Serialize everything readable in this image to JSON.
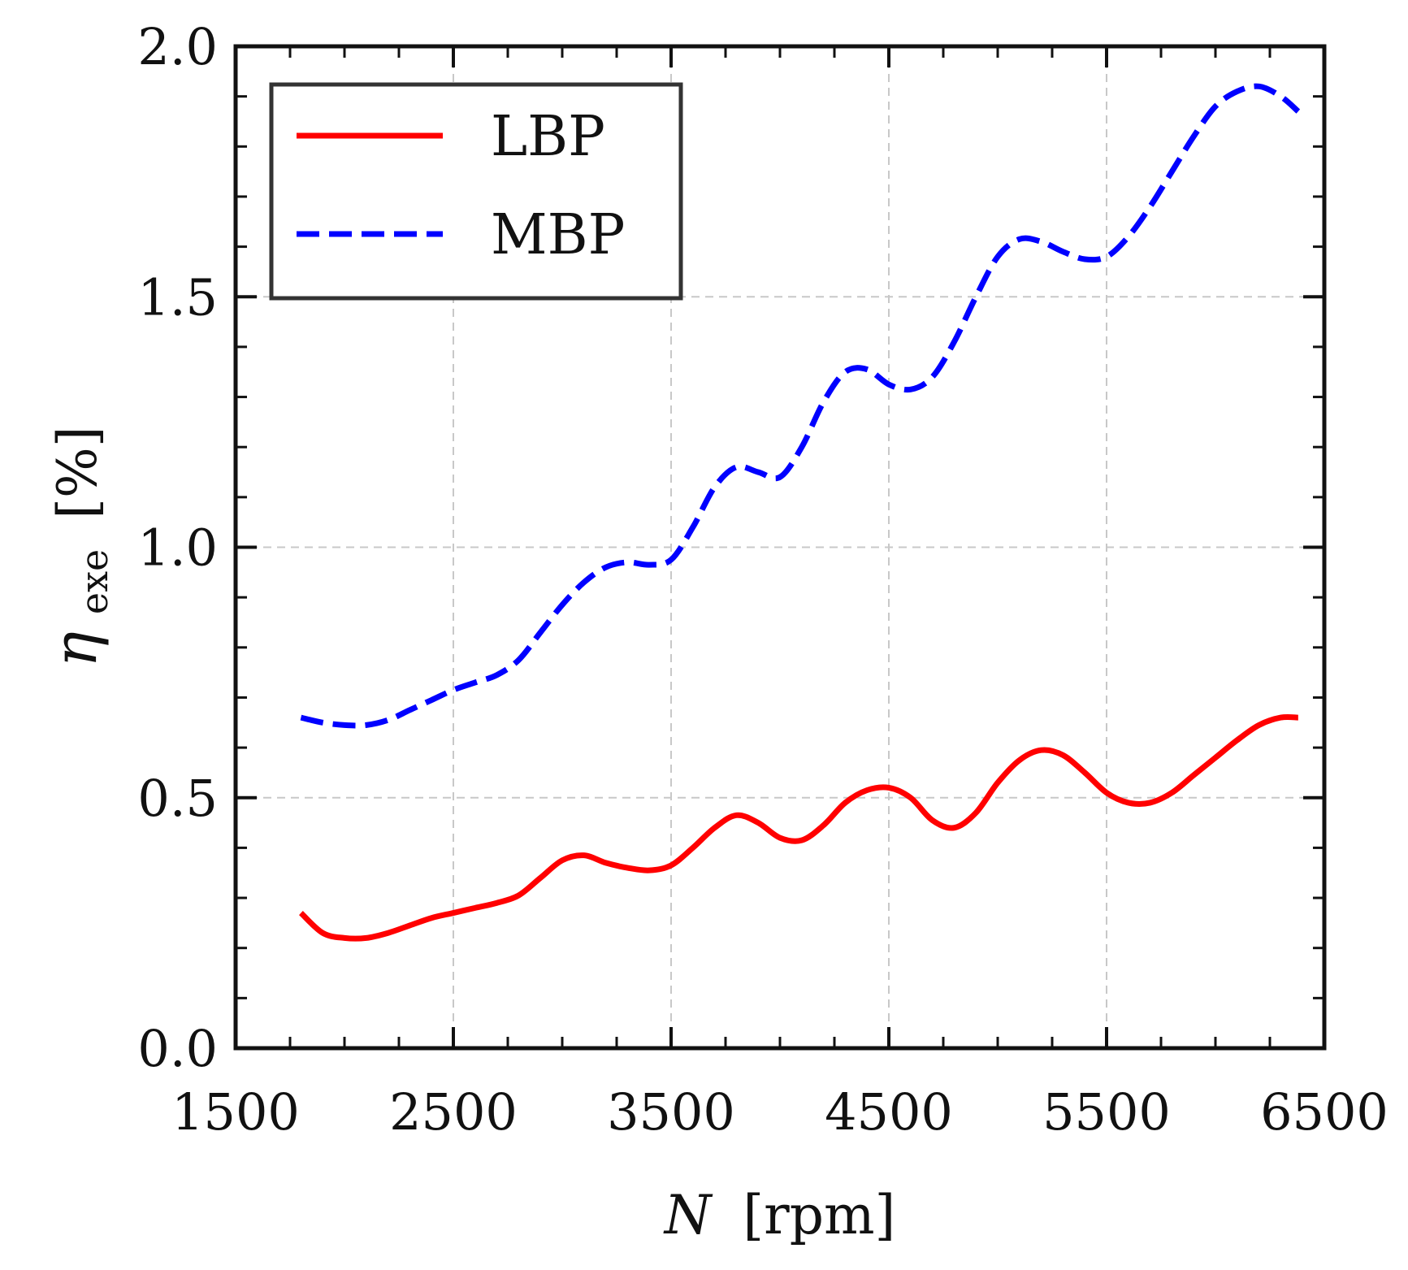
{
  "chart_data": {
    "type": "line",
    "title": "",
    "xlabel": {
      "italic": "N",
      "rest": "[rpm]"
    },
    "ylabel": {
      "symbol": "η",
      "subscript": "exe",
      "rest": "[%]"
    },
    "xlim": [
      1500,
      6500
    ],
    "ylim": [
      0,
      2.0
    ],
    "xticks": [
      1500,
      2500,
      3500,
      4500,
      5500,
      6500
    ],
    "xtick_labels": [
      "1500",
      "2500",
      "3500",
      "4500",
      "5500",
      "6500"
    ],
    "yticks": [
      0,
      0.5,
      1.0,
      1.5,
      2.0
    ],
    "ytick_labels": [
      "0.0",
      "0.5",
      "1.0",
      "1.5",
      "2.0"
    ],
    "grid": true,
    "legend_position": "top-left",
    "series": [
      {
        "name": "LBP",
        "color": "#ff0000",
        "style": "solid",
        "x": [
          1800,
          1900,
          2000,
          2100,
          2200,
          2300,
          2400,
          2500,
          2600,
          2700,
          2800,
          2900,
          3000,
          3100,
          3200,
          3300,
          3400,
          3500,
          3600,
          3700,
          3800,
          3900,
          4000,
          4100,
          4200,
          4300,
          4400,
          4500,
          4600,
          4700,
          4800,
          4900,
          5000,
          5100,
          5200,
          5300,
          5400,
          5500,
          5600,
          5700,
          5800,
          5900,
          6000,
          6100,
          6200,
          6300,
          6380
        ],
        "values": [
          0.27,
          0.23,
          0.22,
          0.22,
          0.23,
          0.245,
          0.26,
          0.27,
          0.28,
          0.29,
          0.305,
          0.34,
          0.375,
          0.385,
          0.37,
          0.36,
          0.355,
          0.365,
          0.4,
          0.44,
          0.465,
          0.45,
          0.42,
          0.415,
          0.445,
          0.49,
          0.515,
          0.52,
          0.5,
          0.455,
          0.44,
          0.47,
          0.53,
          0.575,
          0.595,
          0.585,
          0.55,
          0.51,
          0.49,
          0.49,
          0.51,
          0.545,
          0.58,
          0.615,
          0.645,
          0.66,
          0.66
        ]
      },
      {
        "name": "MBP",
        "color": "#0000ff",
        "style": "dashed",
        "x": [
          1800,
          1900,
          2000,
          2100,
          2200,
          2300,
          2400,
          2500,
          2600,
          2700,
          2800,
          2900,
          3000,
          3100,
          3200,
          3300,
          3400,
          3500,
          3600,
          3700,
          3800,
          3900,
          4000,
          4100,
          4200,
          4300,
          4400,
          4500,
          4600,
          4700,
          4800,
          4900,
          5000,
          5100,
          5200,
          5300,
          5400,
          5500,
          5600,
          5700,
          5800,
          5900,
          6000,
          6100,
          6200,
          6300,
          6380
        ],
        "values": [
          0.66,
          0.65,
          0.645,
          0.645,
          0.655,
          0.675,
          0.695,
          0.715,
          0.73,
          0.745,
          0.775,
          0.83,
          0.885,
          0.93,
          0.96,
          0.97,
          0.965,
          0.975,
          1.04,
          1.12,
          1.16,
          1.15,
          1.14,
          1.2,
          1.29,
          1.35,
          1.355,
          1.325,
          1.315,
          1.34,
          1.41,
          1.5,
          1.58,
          1.615,
          1.61,
          1.59,
          1.575,
          1.58,
          1.62,
          1.68,
          1.75,
          1.82,
          1.88,
          1.91,
          1.92,
          1.9,
          1.87
        ]
      }
    ]
  }
}
